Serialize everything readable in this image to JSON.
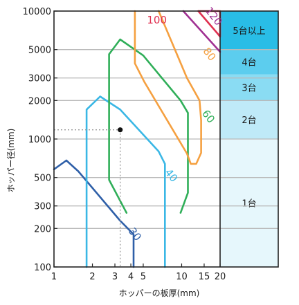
{
  "chart_data": {
    "type": "line",
    "x_scale": "log",
    "y_scale": "log",
    "xlim": [
      1,
      20
    ],
    "ylim": [
      100,
      10000
    ],
    "xlabel": "ホッパーの板厚(mm)",
    "ylabel": "ホッパー径(mm)",
    "x_ticks": [
      {
        "value": 1,
        "label": "1"
      },
      {
        "value": 2,
        "label": "2"
      },
      {
        "value": 3,
        "label": "3"
      },
      {
        "value": 4,
        "label": "4"
      },
      {
        "value": 5,
        "label": "5"
      },
      {
        "value": 10,
        "label": "10"
      },
      {
        "value": 15,
        "label": "15"
      },
      {
        "value": 20,
        "label": "20"
      }
    ],
    "y_ticks": [
      {
        "value": 100,
        "label": "100"
      },
      {
        "value": 200,
        "label": "200"
      },
      {
        "value": 300,
        "label": "300"
      },
      {
        "value": 500,
        "label": "500"
      },
      {
        "value": 1000,
        "label": "1000"
      },
      {
        "value": 2000,
        "label": "2000"
      },
      {
        "value": 3000,
        "label": "3000"
      },
      {
        "value": 5000,
        "label": "5000"
      },
      {
        "value": 10000,
        "label": "10000"
      }
    ],
    "grid": {
      "horizontal": true,
      "vertical": false
    },
    "series": [
      {
        "name": "30",
        "color": "#2e5fa8",
        "label_pos": [
          4.3,
          180
        ],
        "points": [
          [
            1.0,
            580
          ],
          [
            1.25,
            680
          ],
          [
            1.55,
            560
          ],
          [
            3.3,
            230
          ],
          [
            4.2,
            180
          ],
          [
            4.2,
            100
          ]
        ]
      },
      {
        "name": "40",
        "color": "#3ab7e5",
        "label_pos": [
          8.3,
          520
        ],
        "points": [
          [
            1.8,
            100
          ],
          [
            1.8,
            1700
          ],
          [
            2.3,
            2150
          ],
          [
            3.3,
            1700
          ],
          [
            6.6,
            800
          ],
          [
            7.4,
            640
          ],
          [
            7.4,
            100
          ]
        ]
      },
      {
        "name": "60",
        "color": "#2fae58",
        "label_pos": [
          16.2,
          1500
        ],
        "points": [
          [
            3.7,
            265
          ],
          [
            2.7,
            480
          ],
          [
            2.7,
            4600
          ],
          [
            3.3,
            6000
          ],
          [
            5.0,
            4500
          ],
          [
            9.8,
            2000
          ],
          [
            11.2,
            1600
          ],
          [
            11.2,
            380
          ],
          [
            9.8,
            265
          ]
        ]
      },
      {
        "name": "80",
        "color": "#f5a040",
        "label_pos": [
          16.5,
          4600
        ],
        "points": [
          [
            4.3,
            10000
          ],
          [
            4.3,
            3900
          ],
          [
            5.1,
            2800
          ],
          [
            11.0,
            770
          ],
          [
            11.8,
            640
          ],
          [
            13.0,
            640
          ],
          [
            14.2,
            780
          ],
          [
            14.2,
            1400
          ],
          [
            13.8,
            2000
          ],
          [
            11.0,
            3000
          ],
          [
            6.6,
            10000
          ]
        ]
      },
      {
        "name": "100",
        "color": "#e03050",
        "label_pos": [
          6.4,
          8500
        ],
        "points": [
          [
            13.5,
            10000
          ],
          [
            19.3,
            6600
          ],
          [
            20,
            6300
          ],
          [
            20,
            10000
          ],
          [
            13.5,
            10000
          ]
        ]
      },
      {
        "name": "120",
        "color": "#a03092",
        "label_pos": [
          17.8,
          9100
        ],
        "points": [
          [
            10.3,
            10000
          ],
          [
            20,
            4800
          ]
        ]
      }
    ],
    "annotation_point": {
      "x": 3.3,
      "y": 1180
    },
    "side_bands": [
      {
        "label": "5台以上",
        "from": 5000,
        "to": 10000,
        "color": "#29bde6"
      },
      {
        "label": "4台",
        "from": 3200,
        "to": 5000,
        "color": "#5ccdee"
      },
      {
        "label": "3台",
        "from": 2000,
        "to": 3200,
        "color": "#8adcf3"
      },
      {
        "label": "2台",
        "from": 1000,
        "to": 2000,
        "color": "#bfeaf8"
      },
      {
        "label": "1台",
        "from": 100,
        "to": 1000,
        "color": "#e6f7fc"
      }
    ]
  }
}
